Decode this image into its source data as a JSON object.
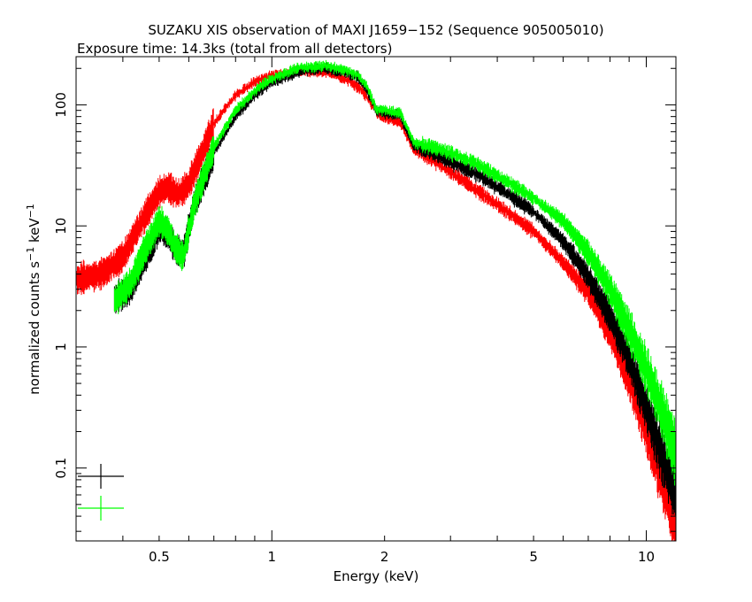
{
  "chart_data": {
    "type": "line",
    "title": "SUZAKU XIS observation of MAXI J1659−152 (Sequence 905005010)",
    "subtitle": "Exposure time: 14.3ks (total from all detectors)",
    "xlabel": "Energy (keV)",
    "ylabel_main": "normalized counts s",
    "ylabel_sup1": "−1",
    "ylabel_mid": " keV",
    "ylabel_sup2": "−1",
    "x_scale": "log",
    "y_scale": "log",
    "xlim": [
      0.3,
      12
    ],
    "ylim": [
      0.025,
      250
    ],
    "x_ticks": [
      {
        "value": 0.5,
        "label": "0.5"
      },
      {
        "value": 1,
        "label": "1"
      },
      {
        "value": 2,
        "label": "2"
      },
      {
        "value": 5,
        "label": "5"
      },
      {
        "value": 10,
        "label": "10"
      }
    ],
    "y_ticks": [
      {
        "value": 0.1,
        "label": "0.1"
      },
      {
        "value": 1,
        "label": "1"
      },
      {
        "value": 10,
        "label": "10"
      },
      {
        "value": 100,
        "label": "100"
      }
    ],
    "grid": false,
    "legend": "bottom-left",
    "series": [
      {
        "color": "#ff0000",
        "x": [
          0.3,
          0.35,
          0.4,
          0.45,
          0.5,
          0.53,
          0.56,
          0.6,
          0.65,
          0.7,
          0.8,
          0.9,
          1.0,
          1.2,
          1.4,
          1.6,
          1.75,
          1.85,
          1.95,
          2.1,
          2.2,
          2.3,
          2.4,
          2.7,
          3.0,
          3.5,
          4.0,
          5.0,
          6.0,
          7.0,
          8.0,
          9.0,
          10.0,
          11.0,
          12.0
        ],
        "y": [
          3.6,
          4.0,
          5.5,
          11,
          19,
          21,
          18,
          22,
          40,
          70,
          120,
          155,
          175,
          190,
          185,
          160,
          130,
          100,
          80,
          75,
          72,
          55,
          42,
          35,
          28,
          20,
          15,
          9,
          5,
          2.8,
          1.3,
          0.55,
          0.2,
          0.08,
          0.035
        ]
      },
      {
        "color": "#000000",
        "x": [
          0.38,
          0.42,
          0.46,
          0.5,
          0.53,
          0.55,
          0.58,
          0.62,
          0.7,
          0.8,
          0.9,
          1.0,
          1.2,
          1.4,
          1.6,
          1.7,
          1.8,
          1.9,
          2.0,
          2.2,
          2.3,
          2.4,
          2.7,
          3.0,
          3.5,
          4.0,
          5.0,
          6.0,
          7.0,
          8.0,
          9.0,
          10.0,
          11.0,
          12.0
        ],
        "y": [
          2.5,
          3.0,
          5.5,
          9.5,
          8.5,
          6.5,
          5.8,
          15,
          40,
          80,
          120,
          155,
          190,
          200,
          180,
          170,
          130,
          90,
          85,
          82,
          60,
          45,
          40,
          34,
          27,
          21,
          13,
          7.5,
          3.8,
          1.8,
          0.8,
          0.32,
          0.13,
          0.06
        ]
      },
      {
        "color": "#00ff00",
        "x": [
          0.38,
          0.42,
          0.46,
          0.5,
          0.53,
          0.55,
          0.58,
          0.62,
          0.7,
          0.8,
          0.9,
          1.0,
          1.2,
          1.4,
          1.6,
          1.7,
          1.8,
          1.9,
          2.0,
          2.2,
          2.3,
          2.4,
          2.7,
          3.0,
          3.5,
          4.0,
          5.0,
          6.0,
          7.0,
          8.0,
          9.0,
          10.0,
          11.0,
          12.0
        ],
        "y": [
          2.4,
          3.4,
          6.5,
          11,
          9.0,
          6.8,
          5.5,
          15,
          45,
          90,
          130,
          165,
          205,
          210,
          190,
          175,
          140,
          92,
          90,
          86,
          65,
          48,
          45,
          40,
          33,
          26,
          17,
          11,
          6.0,
          3.0,
          1.4,
          0.65,
          0.3,
          0.13
        ]
      }
    ]
  }
}
